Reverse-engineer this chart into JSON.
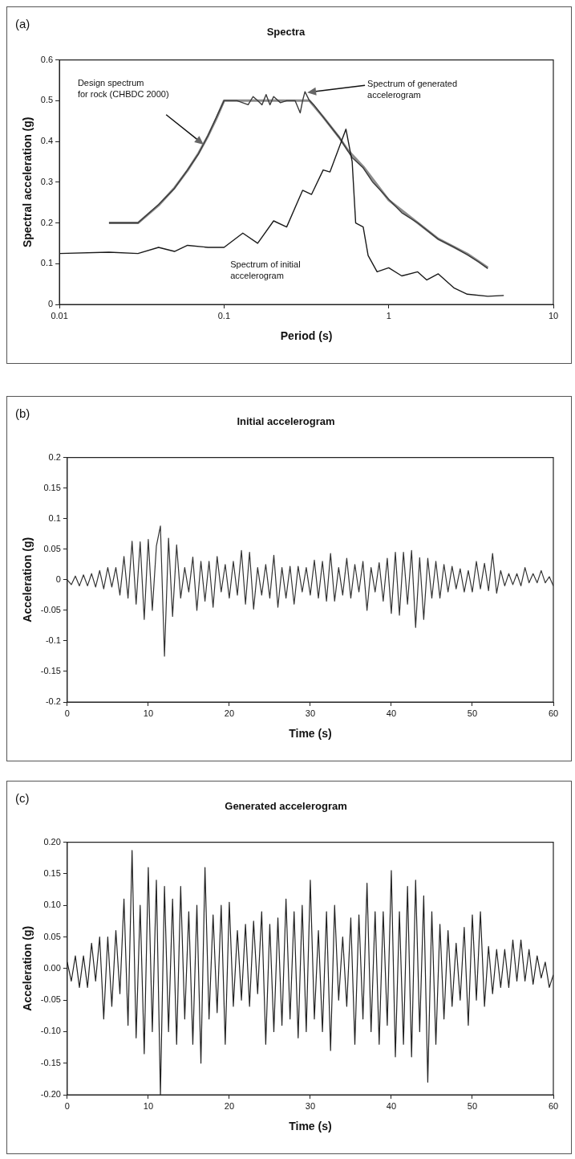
{
  "chart_data": [
    {
      "type": "line",
      "title": "Spectra",
      "xlabel": "Period (s)",
      "ylabel": "Spectral acceleration (g)",
      "log": "x",
      "xlim": [
        0.01,
        10
      ],
      "xticks": [
        0.01,
        0.1,
        1,
        10
      ],
      "ylim": [
        0,
        0.6
      ],
      "yticks": [
        0,
        0.1,
        0.2,
        0.3,
        0.4,
        0.5,
        0.6
      ],
      "legend": false,
      "annotations": [
        "(a)",
        "Design spectrum\nfor rock (CHBDC 2000)",
        {
          "text": "Spectrum of generated\naccelerogram",
          "x": 0.32,
          "y": 0.52
        },
        "Spectrum of initial\naccelerogram"
      ],
      "series": [
        {
          "color": "#8c8c8c",
          "x": [
            0.02,
            0.03,
            0.04,
            0.05,
            0.06,
            0.07,
            0.08,
            0.09,
            0.1,
            0.33,
            0.4,
            0.5,
            0.566,
            0.7,
            1,
            1.5,
            2,
            3,
            4
          ],
          "values": [
            0.2,
            0.2,
            0.243,
            0.286,
            0.329,
            0.371,
            0.414,
            0.457,
            0.5,
            0.5,
            0.46,
            0.41,
            0.378,
            0.338,
            0.256,
            0.2,
            0.161,
            0.124,
            0.09
          ]
        },
        {
          "color": "#3a3a3a",
          "x": [
            0.02,
            0.03,
            0.04,
            0.05,
            0.06,
            0.07,
            0.08,
            0.09,
            0.1,
            0.12,
            0.14,
            0.15,
            0.16,
            0.17,
            0.18,
            0.19,
            0.2,
            0.22,
            0.24,
            0.27,
            0.29,
            0.3,
            0.31,
            0.33,
            0.35,
            0.4,
            0.5,
            0.6,
            0.7,
            0.8,
            1,
            1.2,
            1.5,
            2,
            2.5,
            3,
            3.5,
            4
          ],
          "values": [
            0.2,
            0.2,
            0.245,
            0.285,
            0.33,
            0.37,
            0.415,
            0.46,
            0.5,
            0.5,
            0.49,
            0.51,
            0.5,
            0.49,
            0.515,
            0.49,
            0.51,
            0.495,
            0.5,
            0.5,
            0.47,
            0.5,
            0.522,
            0.5,
            0.49,
            0.46,
            0.41,
            0.36,
            0.335,
            0.3,
            0.258,
            0.225,
            0.2,
            0.16,
            0.14,
            0.122,
            0.105,
            0.088
          ]
        },
        {
          "color": "#1a1a1a",
          "x": [
            0.01,
            0.02,
            0.03,
            0.04,
            0.05,
            0.06,
            0.08,
            0.1,
            0.13,
            0.16,
            0.2,
            0.24,
            0.3,
            0.34,
            0.4,
            0.44,
            0.55,
            0.6,
            0.63,
            0.7,
            0.75,
            0.85,
            1,
            1.2,
            1.5,
            1.7,
            2,
            2.5,
            3,
            4,
            5
          ],
          "values": [
            0.125,
            0.128,
            0.125,
            0.14,
            0.13,
            0.145,
            0.14,
            0.14,
            0.175,
            0.15,
            0.205,
            0.19,
            0.28,
            0.27,
            0.33,
            0.325,
            0.43,
            0.35,
            0.2,
            0.19,
            0.12,
            0.08,
            0.09,
            0.07,
            0.08,
            0.06,
            0.075,
            0.04,
            0.025,
            0.02,
            0.022
          ]
        }
      ]
    },
    {
      "type": "line",
      "title": "Initial accelerogram",
      "xlabel": "Time (s)",
      "ylabel": "Acceleration (g)",
      "xlim": [
        0,
        60
      ],
      "xticks": [
        0,
        10,
        20,
        30,
        40,
        50,
        60
      ],
      "ylim": [
        -0.2,
        0.2
      ],
      "yticks": [
        -0.2,
        -0.15,
        -0.1,
        -0.05,
        0,
        0.05,
        0.1,
        0.15,
        0.2
      ],
      "legend": false,
      "annotations": [
        "(b)"
      ],
      "series": [
        {
          "color": "#333333",
          "x": [
            0,
            0.5,
            1,
            1.5,
            2,
            2.5,
            3,
            3.5,
            4,
            4.5,
            5,
            5.5,
            6,
            6.5,
            7,
            7.5,
            8,
            8.5,
            9,
            9.5,
            10,
            10.5,
            11,
            11.5,
            12,
            12.5,
            13,
            13.5,
            14,
            14.5,
            15,
            15.5,
            16,
            16.5,
            17,
            17.5,
            18,
            18.5,
            19,
            19.5,
            20,
            20.5,
            21,
            21.5,
            22,
            22.5,
            23,
            23.5,
            24,
            24.5,
            25,
            25.5,
            26,
            26.5,
            27,
            27.5,
            28,
            28.5,
            29,
            29.5,
            30,
            30.5,
            31,
            31.5,
            32,
            32.5,
            33,
            33.5,
            34,
            34.5,
            35,
            35.5,
            36,
            36.5,
            37,
            37.5,
            38,
            38.5,
            39,
            39.5,
            40,
            40.5,
            41,
            41.5,
            42,
            42.5,
            43,
            43.5,
            44,
            44.5,
            45,
            45.5,
            46,
            46.5,
            47,
            47.5,
            48,
            48.5,
            49,
            49.5,
            50,
            50.5,
            51,
            51.5,
            52,
            52.5,
            53,
            53.5,
            54,
            54.5,
            55,
            55.5,
            56,
            56.5,
            57,
            57.5,
            58,
            58.5,
            59,
            59.5,
            60
          ],
          "values": [
            0,
            -0.008,
            0.006,
            -0.01,
            0.008,
            -0.01,
            0.01,
            -0.012,
            0.015,
            -0.015,
            0.02,
            -0.012,
            0.02,
            -0.025,
            0.038,
            -0.03,
            0.063,
            -0.04,
            0.062,
            -0.065,
            0.066,
            -0.05,
            0.055,
            0.088,
            -0.125,
            0.068,
            -0.06,
            0.057,
            -0.03,
            0.02,
            -0.02,
            0.037,
            -0.05,
            0.03,
            -0.035,
            0.03,
            -0.045,
            0.038,
            -0.02,
            0.025,
            -0.03,
            0.03,
            -0.025,
            0.048,
            -0.04,
            0.045,
            -0.048,
            0.02,
            -0.025,
            0.025,
            -0.03,
            0.04,
            -0.045,
            0.02,
            -0.03,
            0.022,
            -0.04,
            0.022,
            -0.02,
            0.02,
            -0.025,
            0.032,
            -0.03,
            0.03,
            -0.035,
            0.043,
            -0.035,
            0.02,
            -0.025,
            0.035,
            -0.03,
            0.025,
            -0.02,
            0.03,
            -0.05,
            0.02,
            -0.02,
            0.028,
            -0.035,
            0.035,
            -0.055,
            0.045,
            -0.058,
            0.045,
            -0.04,
            0.048,
            -0.078,
            0.036,
            -0.065,
            0.035,
            -0.03,
            0.03,
            -0.03,
            0.025,
            -0.02,
            0.022,
            -0.015,
            0.018,
            -0.02,
            0.015,
            -0.02,
            0.03,
            -0.015,
            0.027,
            -0.018,
            0.043,
            -0.022,
            0.015,
            -0.01,
            0.01,
            -0.008,
            0.01,
            -0.01,
            0.02,
            -0.005,
            0.01,
            -0.005,
            0.015,
            -0.005,
            0.005,
            -0.01
          ]
        }
      ]
    },
    {
      "type": "line",
      "title": "Generated accelerogram",
      "xlabel": "Time (s)",
      "ylabel": "Acceleration (g)",
      "xlim": [
        0,
        60
      ],
      "xticks": [
        0,
        10,
        20,
        30,
        40,
        50,
        60
      ],
      "ylim": [
        -0.2,
        0.2
      ],
      "yticks": [
        {
          "value": -0.2,
          "label": "-0.20"
        },
        {
          "value": -0.15,
          "label": "-0.15"
        },
        {
          "value": -0.1,
          "label": "-0.10"
        },
        {
          "value": -0.05,
          "label": "-0.05"
        },
        {
          "value": 0,
          "label": "0.00"
        },
        {
          "value": 0.05,
          "label": "0.05"
        },
        {
          "value": 0.1,
          "label": "0.10"
        },
        {
          "value": 0.15,
          "label": "0.15"
        },
        {
          "value": 0.2,
          "label": "0.20"
        }
      ],
      "legend": false,
      "annotations": [
        "(c)"
      ],
      "series": [
        {
          "color": "#222222",
          "x": [
            0,
            0.5,
            1,
            1.5,
            2,
            2.5,
            3,
            3.5,
            4,
            4.5,
            5,
            5.5,
            6,
            6.5,
            7,
            7.5,
            8,
            8.5,
            9,
            9.5,
            10,
            10.5,
            11,
            11.5,
            12,
            12.5,
            13,
            13.5,
            14,
            14.5,
            15,
            15.5,
            16,
            16.5,
            17,
            17.5,
            18,
            18.5,
            19,
            19.5,
            20,
            20.5,
            21,
            21.5,
            22,
            22.5,
            23,
            23.5,
            24,
            24.5,
            25,
            25.5,
            26,
            26.5,
            27,
            27.5,
            28,
            28.5,
            29,
            29.5,
            30,
            30.5,
            31,
            31.5,
            32,
            32.5,
            33,
            33.5,
            34,
            34.5,
            35,
            35.5,
            36,
            36.5,
            37,
            37.5,
            38,
            38.5,
            39,
            39.5,
            40,
            40.5,
            41,
            41.5,
            42,
            42.5,
            43,
            43.5,
            44,
            44.5,
            45,
            45.5,
            46,
            46.5,
            47,
            47.5,
            48,
            48.5,
            49,
            49.5,
            50,
            50.5,
            51,
            51.5,
            52,
            52.5,
            53,
            53.5,
            54,
            54.5,
            55,
            55.5,
            56,
            56.5,
            57,
            57.5,
            58,
            58.5,
            59,
            59.5,
            60
          ],
          "values": [
            0.01,
            -0.02,
            0.02,
            -0.03,
            0.02,
            -0.03,
            0.04,
            -0.02,
            0.05,
            -0.08,
            0.05,
            -0.06,
            0.06,
            -0.04,
            0.11,
            -0.09,
            0.187,
            -0.11,
            0.1,
            -0.135,
            0.16,
            -0.1,
            0.14,
            -0.2,
            0.13,
            -0.1,
            0.11,
            -0.12,
            0.13,
            -0.08,
            0.09,
            -0.12,
            0.1,
            -0.15,
            0.16,
            -0.08,
            0.085,
            -0.07,
            0.1,
            -0.12,
            0.105,
            -0.06,
            0.06,
            -0.05,
            0.07,
            -0.06,
            0.075,
            -0.04,
            0.09,
            -0.12,
            0.07,
            -0.1,
            0.08,
            -0.09,
            0.11,
            -0.08,
            0.09,
            -0.11,
            0.1,
            -0.1,
            0.14,
            -0.08,
            0.06,
            -0.1,
            0.09,
            -0.13,
            0.1,
            -0.05,
            0.05,
            -0.06,
            0.08,
            -0.12,
            0.085,
            -0.08,
            0.135,
            -0.1,
            0.09,
            -0.12,
            0.09,
            -0.09,
            0.155,
            -0.14,
            0.09,
            -0.12,
            0.13,
            -0.14,
            0.14,
            -0.1,
            0.115,
            -0.18,
            0.09,
            -0.12,
            0.07,
            -0.08,
            0.06,
            -0.06,
            0.04,
            -0.05,
            0.065,
            -0.09,
            0.085,
            -0.05,
            0.09,
            -0.06,
            0.035,
            -0.04,
            0.03,
            -0.03,
            0.03,
            -0.03,
            0.045,
            -0.02,
            0.045,
            -0.02,
            0.03,
            -0.025,
            0.02,
            -0.015,
            0.01,
            -0.03,
            -0.01
          ]
        }
      ]
    }
  ]
}
